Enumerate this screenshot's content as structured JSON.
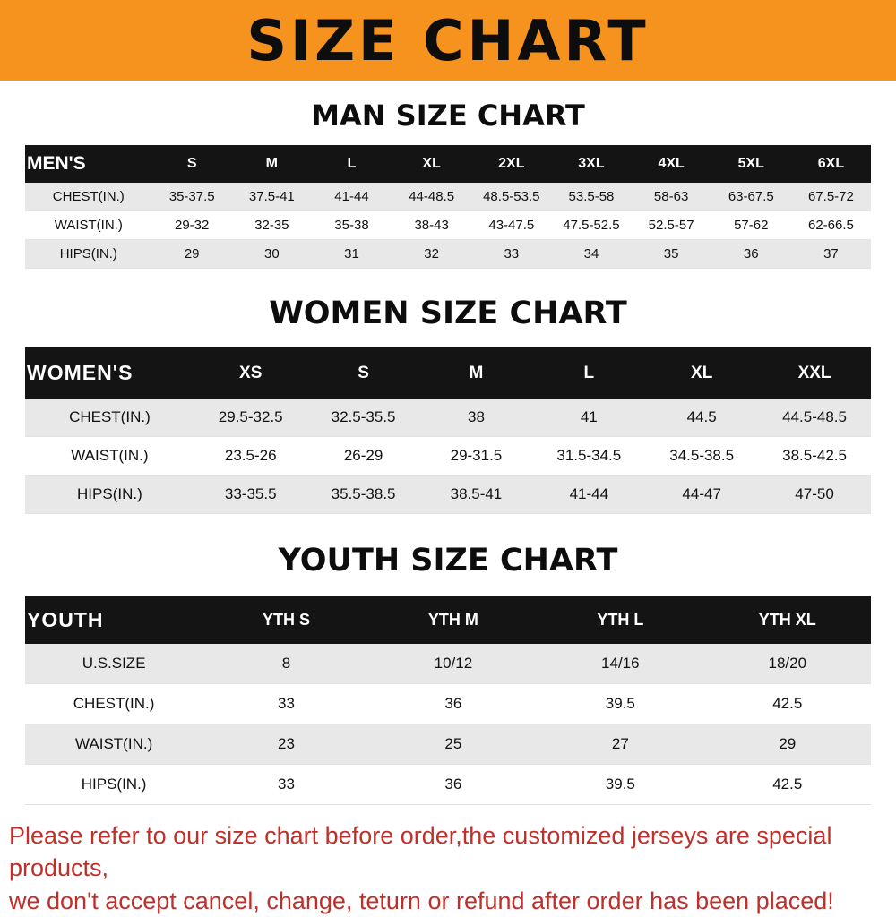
{
  "banner": {
    "title": "SIZE CHART"
  },
  "colors": {
    "banner_bg": "#F6921E",
    "table_header_bg": "#141414",
    "row_stripe": "#e8e8e8",
    "notice_text": "#c0302b"
  },
  "sections": [
    {
      "name": "mens",
      "title": "MAN SIZE CHART",
      "header": [
        "MEN'S",
        "S",
        "M",
        "L",
        "XL",
        "2XL",
        "3XL",
        "4XL",
        "5XL",
        "6XL"
      ],
      "rows": [
        [
          "CHEST(IN.)",
          "35-37.5",
          "37.5-41",
          "41-44",
          "44-48.5",
          "48.5-53.5",
          "53.5-58",
          "58-63",
          "63-67.5",
          "67.5-72"
        ],
        [
          "WAIST(IN.)",
          "29-32",
          "32-35",
          "35-38",
          "38-43",
          "43-47.5",
          "47.5-52.5",
          "52.5-57",
          "57-62",
          "62-66.5"
        ],
        [
          "HIPS(IN.)",
          "29",
          "30",
          "31",
          "32",
          "33",
          "34",
          "35",
          "36",
          "37"
        ]
      ]
    },
    {
      "name": "womens",
      "title": "WOMEN SIZE CHART",
      "header": [
        "WOMEN'S",
        "XS",
        "S",
        "M",
        "L",
        "XL",
        "XXL"
      ],
      "rows": [
        [
          "CHEST(IN.)",
          "29.5-32.5",
          "32.5-35.5",
          "38",
          "41",
          "44.5",
          "44.5-48.5"
        ],
        [
          "WAIST(IN.)",
          "23.5-26",
          "26-29",
          "29-31.5",
          "31.5-34.5",
          "34.5-38.5",
          "38.5-42.5"
        ],
        [
          "HIPS(IN.)",
          "33-35.5",
          "35.5-38.5",
          "38.5-41",
          "41-44",
          "44-47",
          "47-50"
        ]
      ]
    },
    {
      "name": "youth",
      "title": "YOUTH SIZE CHART",
      "header": [
        "YOUTH",
        "YTH S",
        "YTH M",
        "YTH L",
        "YTH XL"
      ],
      "rows": [
        [
          "U.S.SIZE",
          "8",
          "10/12",
          "14/16",
          "18/20"
        ],
        [
          "CHEST(IN.)",
          "33",
          "36",
          "39.5",
          "42.5"
        ],
        [
          "WAIST(IN.)",
          "23",
          "25",
          "27",
          "29"
        ],
        [
          "HIPS(IN.)",
          "33",
          "36",
          "39.5",
          "42.5"
        ]
      ]
    }
  ],
  "footer": {
    "line1": "Please refer to our size chart before order,the customized jerseys are special products,",
    "line2": "we don't accept cancel, change, teturn or refund after order has been placed!"
  }
}
